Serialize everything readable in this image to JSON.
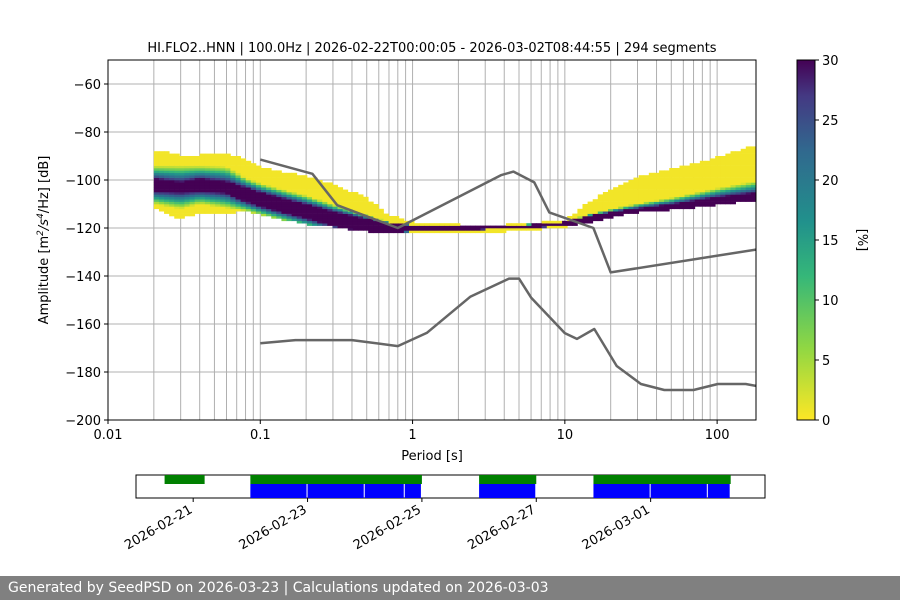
{
  "chart_data": {
    "type": "heatmap",
    "title": "HI.FLO2..HNN | 100.0Hz | 2026-02-22T00:00:05 - 2026-03-02T08:44:55 | 294 segments",
    "xlabel": "Period [s]",
    "ylabel_prefix": "Amplitude [m",
    "ylabel_suffix": "/Hz] [dB]",
    "ylabel_unit_parts": [
      "2",
      "/s",
      "4"
    ],
    "x_scale": "log",
    "xlim": [
      0.01,
      180
    ],
    "ylim": [
      -200,
      -50
    ],
    "x_tick_labels": [
      {
        "value": 0.01,
        "label": "0.01"
      },
      {
        "value": 0.1,
        "label": "0.1"
      },
      {
        "value": 1,
        "label": "1"
      },
      {
        "value": 10,
        "label": "10"
      },
      {
        "value": 100,
        "label": "100"
      }
    ],
    "y_ticks": [
      -60,
      -80,
      -100,
      -120,
      -140,
      -160,
      -180,
      -200
    ],
    "y_tick_labels": [
      "−60",
      "−80",
      "−100",
      "−120",
      "−140",
      "−160",
      "−180",
      "−200"
    ],
    "grid": "x-minor-and-major",
    "colorbar": {
      "label": "[%]",
      "range": [
        0,
        30
      ],
      "ticks": [
        0,
        5,
        10,
        15,
        20,
        25,
        30
      ],
      "tick_labels": [
        "0",
        "5",
        "10",
        "15",
        "20",
        "25",
        "30"
      ],
      "colormap": "viridis_r"
    },
    "series": [
      {
        "name": "PSD mode (most probable)",
        "period": [
          0.02,
          0.03,
          0.04,
          0.06,
          0.08,
          0.1,
          0.15,
          0.2,
          0.3,
          0.5,
          0.7,
          1,
          2,
          4,
          7,
          10,
          20,
          50,
          100,
          180
        ],
        "db": [
          -102,
          -103,
          -102,
          -103,
          -106,
          -108,
          -111,
          -113,
          -116,
          -119,
          -120,
          -120,
          -120,
          -119.5,
          -119,
          -118,
          -116,
          -113,
          -110,
          -108
        ]
      },
      {
        "name": "NHNM",
        "period": [
          0.1,
          0.22,
          0.32,
          0.8,
          3.8,
          4.6,
          6.3,
          7.9,
          15.4,
          20,
          180
        ],
        "db": [
          -91.5,
          -97.4,
          -110.5,
          -120,
          -98,
          -96.5,
          -101,
          -113.5,
          -120,
          -138.5,
          -129
        ]
      },
      {
        "name": "NLNM",
        "period": [
          0.1,
          0.17,
          0.4,
          0.8,
          1.24,
          2.4,
          4.3,
          5.0,
          6.0,
          10,
          12,
          15.6,
          21.9,
          31.6,
          45,
          70,
          101,
          154,
          180
        ],
        "db": [
          -168,
          -166.7,
          -166.7,
          -169.2,
          -163.7,
          -148.6,
          -141.1,
          -141.1,
          -149,
          -163.8,
          -166.2,
          -162.1,
          -177.5,
          -185,
          -187.5,
          -187.5,
          -185,
          -185,
          -185.8
        ]
      }
    ],
    "heatmap_band": {
      "period": [
        0.02,
        0.03,
        0.04,
        0.06,
        0.08,
        0.1,
        0.2,
        0.3,
        0.5,
        0.7,
        1,
        2,
        4,
        7,
        10,
        15,
        20,
        30,
        50,
        100,
        180
      ],
      "db_low": [
        -111,
        -116,
        -113,
        -114,
        -112,
        -114,
        -118,
        -119,
        -121,
        -122,
        -122,
        -122,
        -121,
        -120,
        -119,
        -117,
        -115,
        -113,
        -112,
        -110,
        -108
      ],
      "db_high": [
        -88,
        -90,
        -90,
        -89,
        -92,
        -95,
        -99,
        -102,
        -108,
        -115,
        -118,
        -119,
        -119,
        -118,
        -117,
        -109,
        -104,
        -99,
        -96,
        -91,
        -86
      ]
    },
    "availability": {
      "date_labels": [
        "2026-02-21",
        "2026-02-23",
        "2026-02-25",
        "2026-02-27",
        "2026-03-01"
      ],
      "date_start": "2026-02-20",
      "date_end": "2026-03-03",
      "green_segments": [
        [
          "2026-02-20.5",
          "2026-02-21.2"
        ],
        [
          "2026-02-22.0",
          "2026-02-25.0"
        ],
        [
          "2026-02-26.0",
          "2026-02-27.0"
        ],
        [
          "2026-02-28.0",
          "2026-03-02.4"
        ]
      ],
      "blue_segments": [
        [
          "2026-02-22.0",
          "2026-02-23.0"
        ],
        [
          "2026-02-23.0",
          "2026-02-24.0"
        ],
        [
          "2026-02-24.0",
          "2026-02-24.7"
        ],
        [
          "2026-02-24.7",
          "2026-02-25.0"
        ],
        [
          "2026-02-26.0",
          "2026-02-27.0"
        ],
        [
          "2026-02-28.0",
          "2026-03-01.0"
        ],
        [
          "2026-03-01.0",
          "2026-03-02.0"
        ],
        [
          "2026-03-02.0",
          "2026-03-02.4"
        ]
      ]
    }
  },
  "colors": {
    "curve": "#666666",
    "grid": "#b0b0b0",
    "green": "#008000",
    "blue": "#0000ff",
    "footer_bg": "#808080"
  },
  "footer": {
    "generated": "Generated by SeedPSD on 2026-03-23",
    "separator": " | ",
    "updated": "Calculations updated on 2026-03-03"
  }
}
